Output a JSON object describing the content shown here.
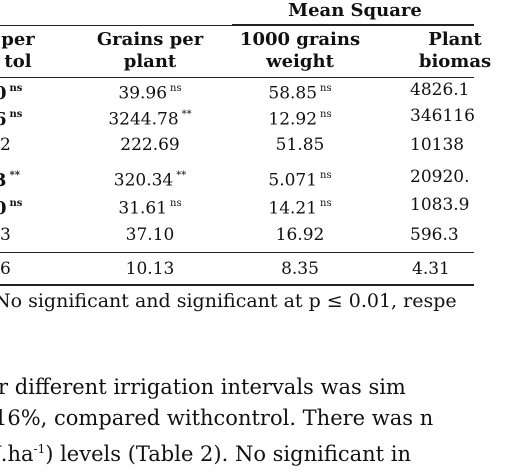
{
  "table": {
    "group_header": "Mean Square",
    "columns": [
      {
        "line1": "per",
        "line2": "tol"
      },
      {
        "line1": "Grains per",
        "line2": "plant"
      },
      {
        "line1": "1000 grains",
        "line2": "weight"
      },
      {
        "line1": "Plant",
        "line2": "biomas"
      }
    ],
    "rows": [
      {
        "c0": "0",
        "c0_sup": "ns",
        "c1": "39.96",
        "c1_sup": "ns",
        "c2": "58.85",
        "c2_sup": "ns",
        "c3": "4826.1"
      },
      {
        "c0": "6",
        "c0_sup": "ns",
        "c1": "3244.78",
        "c1_sup": "**",
        "c2": "12.92",
        "c2_sup": "ns",
        "c3": "346116"
      },
      {
        "c0": "2",
        "c0_sup": "",
        "c1": "222.69",
        "c1_sup": "",
        "c2": "51.85",
        "c2_sup": "",
        "c3": "10138"
      },
      {
        "c0": "3",
        "c0_sup": "**",
        "c1": "320.34",
        "c1_sup": "**",
        "c2": "5.071",
        "c2_sup": "ns",
        "c3": "20920."
      },
      {
        "c0": "0",
        "c0_sup": "ns",
        "c1": "31.61",
        "c1_sup": "ns",
        "c2": "14.21",
        "c2_sup": "ns",
        "c3": "1083.9"
      },
      {
        "c0": "3",
        "c0_sup": "",
        "c1": "37.10",
        "c1_sup": "",
        "c2": "16.92",
        "c2_sup": "",
        "c3": "596.3"
      },
      {
        "c0": "6",
        "c0_sup": "",
        "c1": "10.13",
        "c1_sup": "",
        "c2": "8.35",
        "c2_sup": "",
        "c3": "4.31"
      }
    ],
    "footnote": "No significant and significant at p ≤ 0.01, respe"
  },
  "paragraph": {
    "line1": "r different irrigation intervals was sim",
    "line2": "16%, compared withcontrol. There was n",
    "line3_pre": "J.ha",
    "line3_sup": "-1",
    "line3_post": ") levels (Table 2). No significant in"
  }
}
